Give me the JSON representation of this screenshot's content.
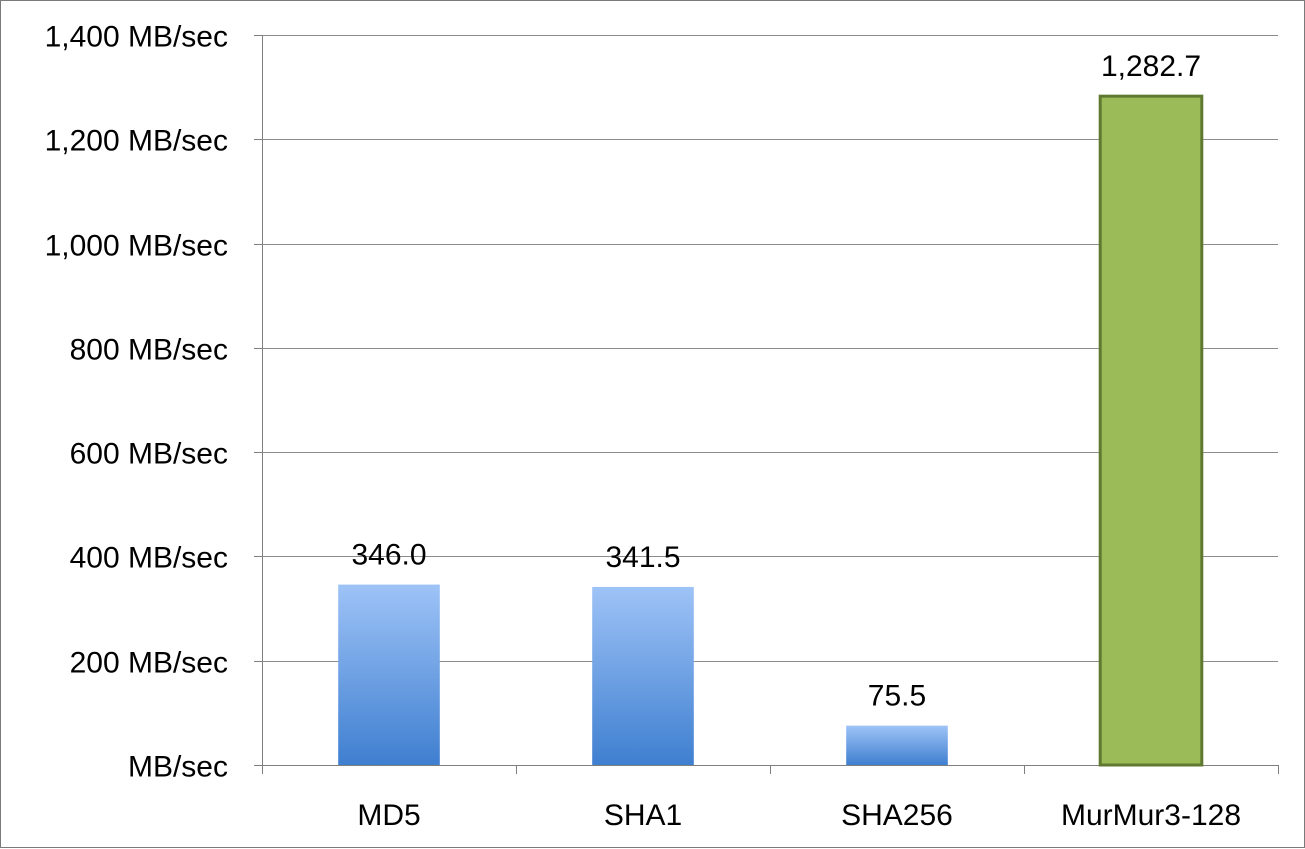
{
  "chart_data": {
    "type": "bar",
    "categories": [
      "MD5",
      "SHA1",
      "SHA256",
      "MurMur3-128"
    ],
    "values": [
      346.0,
      341.5,
      75.5,
      1282.7
    ],
    "data_labels": [
      "346.0",
      "341.5",
      "75.5",
      "1,282.7"
    ],
    "ylim": [
      0,
      1400
    ],
    "yticks": [
      0,
      200,
      400,
      600,
      800,
      1000,
      1200,
      1400
    ],
    "ytick_labels": [
      "MB/sec",
      "200 MB/sec",
      "400 MB/sec",
      "600 MB/sec",
      "800 MB/sec",
      "1,000 MB/sec",
      "1,200 MB/sec",
      "1,400 MB/sec"
    ],
    "grid": true,
    "legend": "none",
    "colors": {
      "default_bar_top": "#9ec3f7",
      "default_bar_bottom": "#3f7fd0",
      "highlight_bar": "#9bbb59",
      "highlight_border": "#5f7a30",
      "grid": "#8c8c8c",
      "axis": "#7f7f7f"
    },
    "highlight_index": 3
  }
}
